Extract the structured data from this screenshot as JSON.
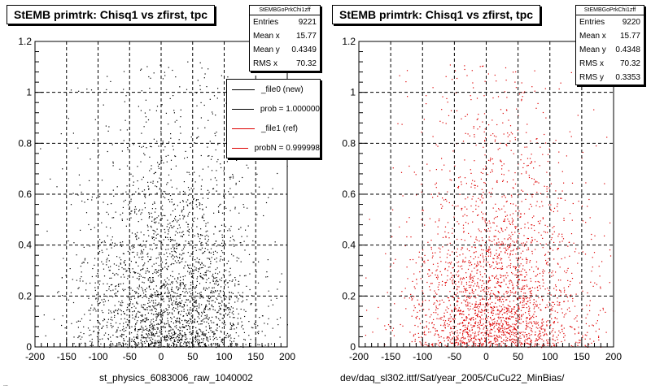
{
  "footer_text": "...",
  "colors": {
    "ref_series": "#dd0000",
    "new_series": "#000000"
  },
  "chart_data": [
    {
      "type": "scatter",
      "title": "StEMB primtrk: Chisq1 vs zfirst, tpc",
      "caption": "st_physics_6083006_raw_1040002",
      "xlim": [
        -200,
        200
      ],
      "ylim": [
        0,
        1.2
      ],
      "xticks": [
        "-200",
        "-150",
        "-100",
        "-50",
        "0",
        "50",
        "100",
        "150",
        "200"
      ],
      "yticks": [
        "0",
        "0.2",
        "0.4",
        "0.6",
        "0.8",
        "1",
        "1.2"
      ],
      "grid": true,
      "point_color": "#000000",
      "point_count": 9221,
      "stats": {
        "name": "StEMBGoPrkChi1zff",
        "rows": [
          {
            "label": "Entries",
            "value": "9221"
          },
          {
            "label": "Mean x",
            "value": "15.77"
          },
          {
            "label": "Mean y",
            "value": "0.4349"
          },
          {
            "label": "RMS x",
            "value": "70.32"
          }
        ]
      },
      "legend": [
        {
          "label": "_file0 (new)",
          "color": "#000000"
        },
        {
          "label": "prob = 1.000000",
          "color": "#000000"
        },
        {
          "label": "_file1 (ref)",
          "color": "#dd0000"
        },
        {
          "label": "probN = 0.999998",
          "color": "#dd0000"
        }
      ]
    },
    {
      "type": "scatter",
      "title": "StEMB primtrk: Chisq1 vs zfirst, tpc",
      "caption": "dev/daq_sl302.ittf/Sat/year_2005/CuCu22_MinBias/",
      "xlim": [
        -200,
        200
      ],
      "ylim": [
        0,
        1.2
      ],
      "xticks": [
        "-200",
        "-150",
        "-100",
        "-50",
        "0",
        "50",
        "100",
        "150",
        "200"
      ],
      "yticks": [
        "0",
        "0.2",
        "0.4",
        "0.6",
        "0.8",
        "1",
        "1.2"
      ],
      "grid": true,
      "point_color": "#dd0000",
      "point_count": 9220,
      "stats": {
        "name": "StEMBGoPrkChi1zff",
        "rows": [
          {
            "label": "Entries",
            "value": "9220"
          },
          {
            "label": "Mean x",
            "value": "15.77"
          },
          {
            "label": "Mean y",
            "value": "0.4348"
          },
          {
            "label": "RMS x",
            "value": "70.32"
          },
          {
            "label": "RMS y",
            "value": "0.3353"
          }
        ]
      }
    }
  ]
}
